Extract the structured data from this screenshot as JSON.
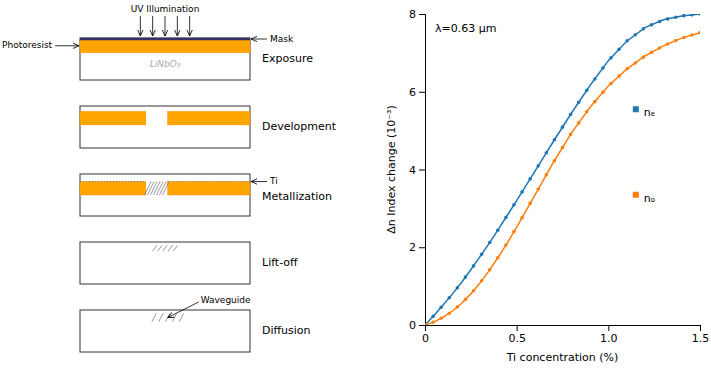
{
  "chart_data": [
    {
      "type": "diagram",
      "categories": [
        "Exposure",
        "Development",
        "Metallization",
        "Lift-off",
        "Diffusion"
      ],
      "annotations": [
        "UV Illumination",
        "Photoresist",
        "Mask",
        "LiNbO₃",
        "Ti",
        "Waveguide"
      ],
      "colors": [
        "#FFA500",
        "#333366"
      ]
    },
    {
      "type": "line",
      "xlabel": "Ti concentration (%)",
      "ylabel": "Δn Index change (10⁻³)",
      "annotation": "λ=0.63 μm",
      "xlim": [
        0,
        1.5
      ],
      "ylim": [
        0,
        8
      ],
      "xticks": [
        0,
        0.5,
        {
          "value": 1.0,
          "label": "1.0"
        },
        1.5
      ],
      "yticks": [
        0,
        2,
        4,
        6,
        8
      ],
      "series": [
        {
          "type": "line",
          "x": [
            0,
            0.05,
            0.1,
            0.15,
            0.2,
            0.25,
            0.3,
            0.35,
            0.4,
            0.45,
            0.5,
            0.55,
            0.6,
            0.7,
            0.8,
            0.9,
            1.0,
            1.1,
            1.2,
            1.3,
            1.4,
            1.5
          ],
          "values": [
            0,
            0.25,
            0.52,
            0.8,
            1.1,
            1.42,
            1.76,
            2.1,
            2.46,
            2.83,
            3.2,
            3.58,
            3.96,
            4.72,
            5.46,
            6.16,
            6.8,
            7.3,
            7.65,
            7.85,
            7.95,
            8.0
          ]
        },
        {
          "type": "line",
          "x": [
            0,
            0.05,
            0.1,
            0.15,
            0.2,
            0.25,
            0.3,
            0.35,
            0.4,
            0.45,
            0.5,
            0.55,
            0.6,
            0.7,
            0.8,
            0.9,
            1.0,
            1.1,
            1.2,
            1.3,
            1.4,
            1.5
          ],
          "values": [
            0,
            0.08,
            0.2,
            0.36,
            0.56,
            0.8,
            1.08,
            1.4,
            1.75,
            2.12,
            2.52,
            2.93,
            3.35,
            4.18,
            4.95,
            5.6,
            6.15,
            6.58,
            6.92,
            7.18,
            7.38,
            7.52
          ]
        },
        {
          "type": "scatter",
          "marker": "dot",
          "x": [
            0,
            0.0441,
            0.0882,
            0.1324,
            0.1765,
            0.2206,
            0.2647,
            0.3088,
            0.3529,
            0.3971,
            0.4412,
            0.4853,
            0.5294,
            0.5735,
            0.6176,
            0.6618,
            0.7059,
            0.75,
            0.7941,
            0.8382,
            0.8824,
            0.9265,
            0.9706,
            1.0147,
            1.0588,
            1.1029,
            1.1471,
            1.1912,
            1.2353,
            1.2794,
            1.3235,
            1.3676,
            1.4118,
            1.4559,
            1.5
          ],
          "values": [
            0,
            0.2206,
            0.4565,
            0.7012,
            0.9588,
            1.2318,
            1.52,
            1.82,
            2.1212,
            2.4388,
            2.7647,
            3.0912,
            3.4235,
            3.7588,
            4.0941,
            4.4294,
            4.7635,
            5.09,
            5.4165,
            5.7276,
            6.0365,
            6.3294,
            6.6118,
            6.8735,
            7.0941,
            7.3103,
            7.4647,
            7.6191,
            7.7206,
            7.8088,
            7.8735,
            7.9176,
            7.9559,
            7.9779,
            8
          ]
        },
        {
          "type": "scatter",
          "marker": "dot",
          "x": [
            0,
            0.0441,
            0.0882,
            0.1324,
            0.1765,
            0.2206,
            0.2647,
            0.3088,
            0.3529,
            0.3971,
            0.4412,
            0.4853,
            0.5294,
            0.5735,
            0.6176,
            0.6618,
            0.7059,
            0.75,
            0.7941,
            0.8382,
            0.8824,
            0.9265,
            0.9706,
            1.0147,
            1.0588,
            1.1029,
            1.1471,
            1.1912,
            1.2353,
            1.2794,
            1.3235,
            1.3676,
            1.4118,
            1.4559,
            1.5
          ],
          "values": [
            0,
            0.0706,
            0.1718,
            0.3035,
            0.4659,
            0.6588,
            0.8824,
            1.1365,
            1.4206,
            1.7294,
            2.0547,
            2.4024,
            2.7612,
            3.1276,
            3.4965,
            3.8626,
            4.2253,
            4.565,
            4.9047,
            5.1985,
            5.4853,
            5.7456,
            5.9882,
            6.2132,
            6.4029,
            6.59,
            6.74,
            6.89,
            7.0118,
            7.1265,
            7.2271,
            7.3153,
            7.3965,
            7.4582,
            7.52
          ]
        },
        {
          "type": "scatter",
          "marker": "square",
          "name": "nₑ",
          "x": [
            1.15
          ],
          "values": [
            5.55
          ]
        },
        {
          "type": "scatter",
          "marker": "square",
          "name": "nₒ",
          "x": [
            1.15
          ],
          "values": [
            3.35
          ]
        }
      ]
    }
  ]
}
